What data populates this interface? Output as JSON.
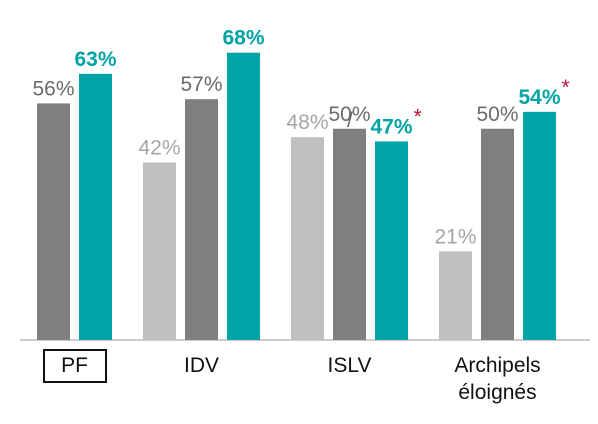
{
  "chart_data": {
    "type": "bar",
    "categories": [
      "PF",
      "IDV",
      "ISLV",
      "Archipels éloignés"
    ],
    "highlighted_category": "PF",
    "series": [
      {
        "color": "#c0c0c0",
        "label_color": "#a6a6a6",
        "values": [
          null,
          42,
          48,
          21
        ],
        "value_labels": [
          null,
          "42%",
          "48%",
          "21%"
        ]
      },
      {
        "color": "#7f7f7f",
        "label_color": "#6b6b6b",
        "values": [
          56,
          57,
          50,
          50
        ],
        "value_labels": [
          "56%",
          "57%",
          "50%",
          "50%"
        ]
      },
      {
        "color": "#00a3a6",
        "label_color": "#00a3a6",
        "bold": true,
        "values": [
          63,
          68,
          47,
          54
        ],
        "value_labels": [
          "63%",
          "68%",
          "47%",
          "54%"
        ],
        "marks": [
          null,
          null,
          "*",
          "*"
        ],
        "mark_color": "#c0143c"
      }
    ],
    "annotations": [
      {
        "text": "/",
        "series": 1,
        "category": 2
      }
    ],
    "ylim": [
      0,
      80
    ]
  }
}
